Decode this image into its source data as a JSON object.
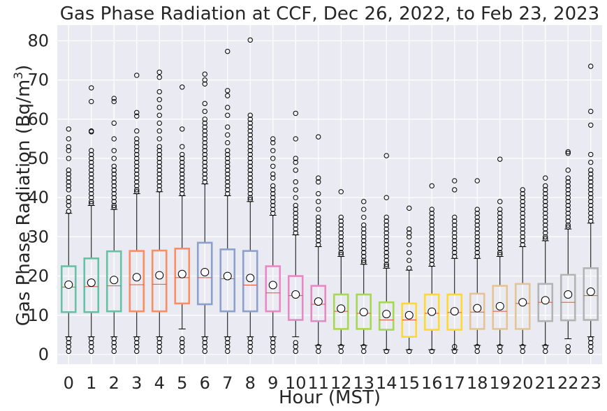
{
  "chart_data": {
    "type": "box",
    "title": "Gas Phase Radiation at CCF, Dec 26, 2022, to Feb 23, 2023",
    "xlabel": "Hour (MST)",
    "ylabel": "Gas Phase Radiation (Bq/m",
    "ylabel_sup": "3",
    "ylabel_end": ")",
    "ylim": [
      -2.5,
      84
    ],
    "yticks": [
      0,
      10,
      20,
      30,
      40,
      50,
      60,
      70,
      80
    ],
    "grid": true,
    "colors": {
      "background": "#eaeaf2",
      "grid": "#ffffff",
      "median": "#dd5533",
      "whisker": "#000000",
      "flier": "#000000",
      "mean_fill": "#ffffff"
    },
    "boxes": [
      {
        "hour": "0",
        "q1": 10.8,
        "median": 17.2,
        "q3": 22.5,
        "whislo": 4.5,
        "whishi": 36.0,
        "mean": 17.8,
        "color": "#66c2a5",
        "fliers": [
          0.8,
          2,
          3,
          4,
          36.5,
          38,
          39,
          40,
          42,
          43,
          44,
          45,
          46,
          47,
          50,
          52,
          53,
          55,
          57.5
        ]
      },
      {
        "hour": "1",
        "q1": 10.8,
        "median": 17.3,
        "q3": 24.5,
        "whislo": 4.5,
        "whishi": 38.0,
        "mean": 18.3,
        "color": "#66c2a5",
        "fliers": [
          0.8,
          2,
          3,
          4,
          38.5,
          39,
          40,
          41,
          42,
          43,
          44,
          45,
          46,
          47,
          48,
          49,
          50,
          51,
          52,
          56.8,
          57,
          64.5,
          68
        ]
      },
      {
        "hour": "2",
        "q1": 11.0,
        "median": 17.5,
        "q3": 26.3,
        "whislo": 4.5,
        "whishi": 37.0,
        "mean": 19.0,
        "color": "#66c2a5",
        "fliers": [
          0.8,
          2,
          3,
          4,
          37.5,
          38,
          39,
          40,
          41,
          42,
          43,
          44,
          45,
          46,
          47,
          48,
          50,
          52,
          55,
          59,
          64.5,
          65.3
        ]
      },
      {
        "hour": "3",
        "q1": 11.0,
        "median": 17.8,
        "q3": 26.4,
        "whislo": 4.5,
        "whishi": 41.0,
        "mean": 19.7,
        "color": "#fc8d62",
        "fliers": [
          0.8,
          2,
          3,
          4,
          41.5,
          42,
          43,
          44,
          45,
          46,
          47,
          48,
          49,
          50,
          51,
          52,
          53,
          54,
          55,
          57,
          60.8,
          61.7,
          71.2
        ]
      },
      {
        "hour": "4",
        "q1": 11.0,
        "median": 17.9,
        "q3": 26.5,
        "whislo": 4.5,
        "whishi": 41.5,
        "mean": 20.2,
        "color": "#fc8d62",
        "fliers": [
          0.8,
          2,
          3,
          4,
          42,
          43,
          44,
          45,
          46,
          47,
          48,
          49,
          50,
          51,
          52,
          53,
          55,
          57,
          59,
          61,
          63,
          65,
          67,
          70.7,
          72
        ]
      },
      {
        "hour": "5",
        "q1": 13.0,
        "median": 19.6,
        "q3": 27.0,
        "whislo": 6.5,
        "whishi": 40.5,
        "mean": 20.5,
        "color": "#fc8d62",
        "fliers": [
          0.8,
          2,
          3,
          4,
          41,
          42,
          43,
          44,
          45,
          46,
          47,
          48,
          49,
          50,
          51,
          53,
          57.5,
          68.2
        ]
      },
      {
        "hour": "6",
        "q1": 12.8,
        "median": 19.6,
        "q3": 28.5,
        "whislo": 4.5,
        "whishi": 43.5,
        "mean": 21.0,
        "color": "#8da0cb",
        "fliers": [
          0.8,
          2,
          3,
          4,
          44,
          45,
          46,
          47,
          48,
          49,
          50,
          51,
          52,
          53,
          54,
          55,
          56,
          57,
          58,
          59,
          60,
          62,
          64,
          69,
          70,
          71.5
        ]
      },
      {
        "hour": "7",
        "q1": 11.0,
        "median": 19.3,
        "q3": 26.8,
        "whislo": 4.5,
        "whishi": 40.5,
        "mean": 20.0,
        "color": "#8da0cb",
        "fliers": [
          0.8,
          2,
          3,
          4,
          41,
          42,
          43,
          44,
          45,
          46,
          47,
          48,
          49,
          50,
          51,
          52,
          54,
          56,
          58,
          61,
          63,
          66,
          67.3,
          77.3
        ]
      },
      {
        "hour": "8",
        "q1": 11.0,
        "median": 17.7,
        "q3": 26.4,
        "whislo": 4.5,
        "whishi": 39.0,
        "mean": 19.5,
        "color": "#8da0cb",
        "fliers": [
          0.8,
          2,
          3,
          4,
          39.5,
          40,
          41,
          42,
          43,
          44,
          45,
          46,
          47,
          48,
          49,
          50,
          51,
          52,
          53,
          54,
          55,
          56,
          57,
          58,
          59,
          60,
          61,
          80.2
        ]
      },
      {
        "hour": "9",
        "q1": 11.0,
        "median": 15.7,
        "q3": 22.5,
        "whislo": 4.5,
        "whishi": 35.5,
        "mean": 17.7,
        "color": "#e78ac3",
        "fliers": [
          0.8,
          2,
          3,
          4,
          36,
          37,
          38,
          39,
          40,
          41,
          42,
          43,
          45,
          46,
          48,
          50,
          52,
          54,
          55
        ]
      },
      {
        "hour": "10",
        "q1": 8.8,
        "median": 15.0,
        "q3": 20.0,
        "whislo": 4.5,
        "whishi": 30.5,
        "mean": 15.3,
        "color": "#e78ac3",
        "fliers": [
          0.8,
          2,
          3,
          31,
          32,
          33,
          34,
          35,
          36,
          37,
          38,
          40,
          42,
          44,
          47,
          49,
          50,
          55,
          61.5
        ]
      },
      {
        "hour": "11",
        "q1": 8.5,
        "median": 12.8,
        "q3": 17.5,
        "whislo": 2.3,
        "whishi": 27.5,
        "mean": 13.5,
        "color": "#e78ac3",
        "fliers": [
          0.8,
          2,
          28,
          29,
          30,
          31,
          32,
          33,
          34,
          35,
          37,
          39,
          41,
          44,
          45,
          55.5
        ]
      },
      {
        "hour": "12",
        "q1": 6.5,
        "median": 11.0,
        "q3": 15.3,
        "whislo": 2.3,
        "whishi": 25.0,
        "mean": 11.7,
        "color": "#a6d854",
        "fliers": [
          0.8,
          2,
          25.5,
          26,
          27,
          28,
          29,
          30,
          31,
          32,
          33,
          34,
          35,
          41.5
        ]
      },
      {
        "hour": "13",
        "q1": 6.5,
        "median": 10.5,
        "q3": 15.3,
        "whislo": 2.3,
        "whishi": 23.0,
        "mean": 10.8,
        "color": "#a6d854",
        "fliers": [
          0.8,
          2,
          23.5,
          24,
          25,
          26,
          27,
          28,
          29,
          30,
          31,
          32,
          33,
          35,
          37,
          39
        ]
      },
      {
        "hour": "14",
        "q1": 6.3,
        "median": 8.8,
        "q3": 13.3,
        "whislo": 1.2,
        "whishi": 22.0,
        "mean": 10.3,
        "color": "#a6d854",
        "fliers": [
          0.8,
          22.5,
          23,
          24,
          25,
          26,
          27,
          28,
          29,
          30,
          31,
          32,
          33,
          34,
          35,
          40,
          50.7
        ]
      },
      {
        "hour": "15",
        "q1": 4.5,
        "median": 8.8,
        "q3": 13.0,
        "whislo": 1.2,
        "whishi": 21.5,
        "mean": 10.0,
        "color": "#ffd92f",
        "fliers": [
          0.8,
          22,
          24,
          26,
          28,
          30,
          31,
          32,
          37.3
        ]
      },
      {
        "hour": "16",
        "q1": 6.3,
        "median": 10.5,
        "q3": 15.3,
        "whislo": 1.2,
        "whishi": 22.5,
        "mean": 10.9,
        "color": "#ffd92f",
        "fliers": [
          0.8,
          23,
          24,
          25,
          26,
          27,
          28,
          29,
          30,
          31,
          32,
          33,
          34,
          35,
          36,
          37,
          43
        ]
      },
      {
        "hour": "17",
        "q1": 6.3,
        "median": 10.7,
        "q3": 15.3,
        "whislo": 1.2,
        "whishi": 24.5,
        "mean": 11.0,
        "color": "#ffd92f",
        "fliers": [
          0.8,
          2,
          25,
          26,
          27,
          28,
          29,
          30,
          31,
          32,
          33,
          34,
          35,
          42,
          44.3
        ]
      },
      {
        "hour": "18",
        "q1": 6.5,
        "median": 10.8,
        "q3": 15.5,
        "whislo": 2.3,
        "whishi": 24.5,
        "mean": 11.8,
        "color": "#e5c494",
        "fliers": [
          0.8,
          2,
          25,
          26,
          27,
          28,
          29,
          30,
          31,
          32,
          33,
          34,
          35,
          36,
          37,
          44.3
        ]
      },
      {
        "hour": "19",
        "q1": 6.5,
        "median": 11.0,
        "q3": 17.5,
        "whislo": 2.3,
        "whishi": 25.0,
        "mean": 12.3,
        "color": "#e5c494",
        "fliers": [
          0.8,
          2,
          25.5,
          26,
          27,
          28,
          29,
          30,
          31,
          32,
          33,
          34,
          35,
          36,
          37,
          39,
          49.8
        ]
      },
      {
        "hour": "20",
        "q1": 6.5,
        "median": 13.0,
        "q3": 18.0,
        "whislo": 2.3,
        "whishi": 27.5,
        "mean": 13.3,
        "color": "#e5c494",
        "fliers": [
          0.8,
          2,
          28,
          29,
          30,
          31,
          32,
          33,
          34,
          35,
          36,
          37,
          38,
          39,
          40,
          41,
          42
        ]
      },
      {
        "hour": "21",
        "q1": 8.5,
        "median": 13.3,
        "q3": 18.0,
        "whislo": 2.3,
        "whishi": 29.0,
        "mean": 13.8,
        "color": "#b3b3b3",
        "fliers": [
          0.8,
          2,
          29.5,
          30,
          31,
          32,
          33,
          34,
          35,
          36,
          37,
          38,
          39,
          40,
          41,
          42,
          43,
          45
        ]
      },
      {
        "hour": "22",
        "q1": 8.7,
        "median": 13.3,
        "q3": 20.3,
        "whislo": 4.0,
        "whishi": 32.0,
        "mean": 15.3,
        "color": "#b3b3b3",
        "fliers": [
          0.8,
          2,
          32.5,
          33,
          34,
          35,
          36,
          37,
          38,
          39,
          40,
          41,
          42,
          43,
          44,
          45,
          47,
          51.3,
          51.7
        ]
      },
      {
        "hour": "23",
        "q1": 8.8,
        "median": 15.0,
        "q3": 22.0,
        "whislo": 4.5,
        "whishi": 33.5,
        "mean": 16.0,
        "color": "#b3b3b3",
        "fliers": [
          0.8,
          2,
          3,
          4,
          34,
          35,
          36,
          37,
          38,
          39,
          40,
          41,
          42,
          43,
          44,
          45,
          46,
          47,
          49,
          51,
          58.5,
          62,
          73.5
        ]
      }
    ]
  }
}
